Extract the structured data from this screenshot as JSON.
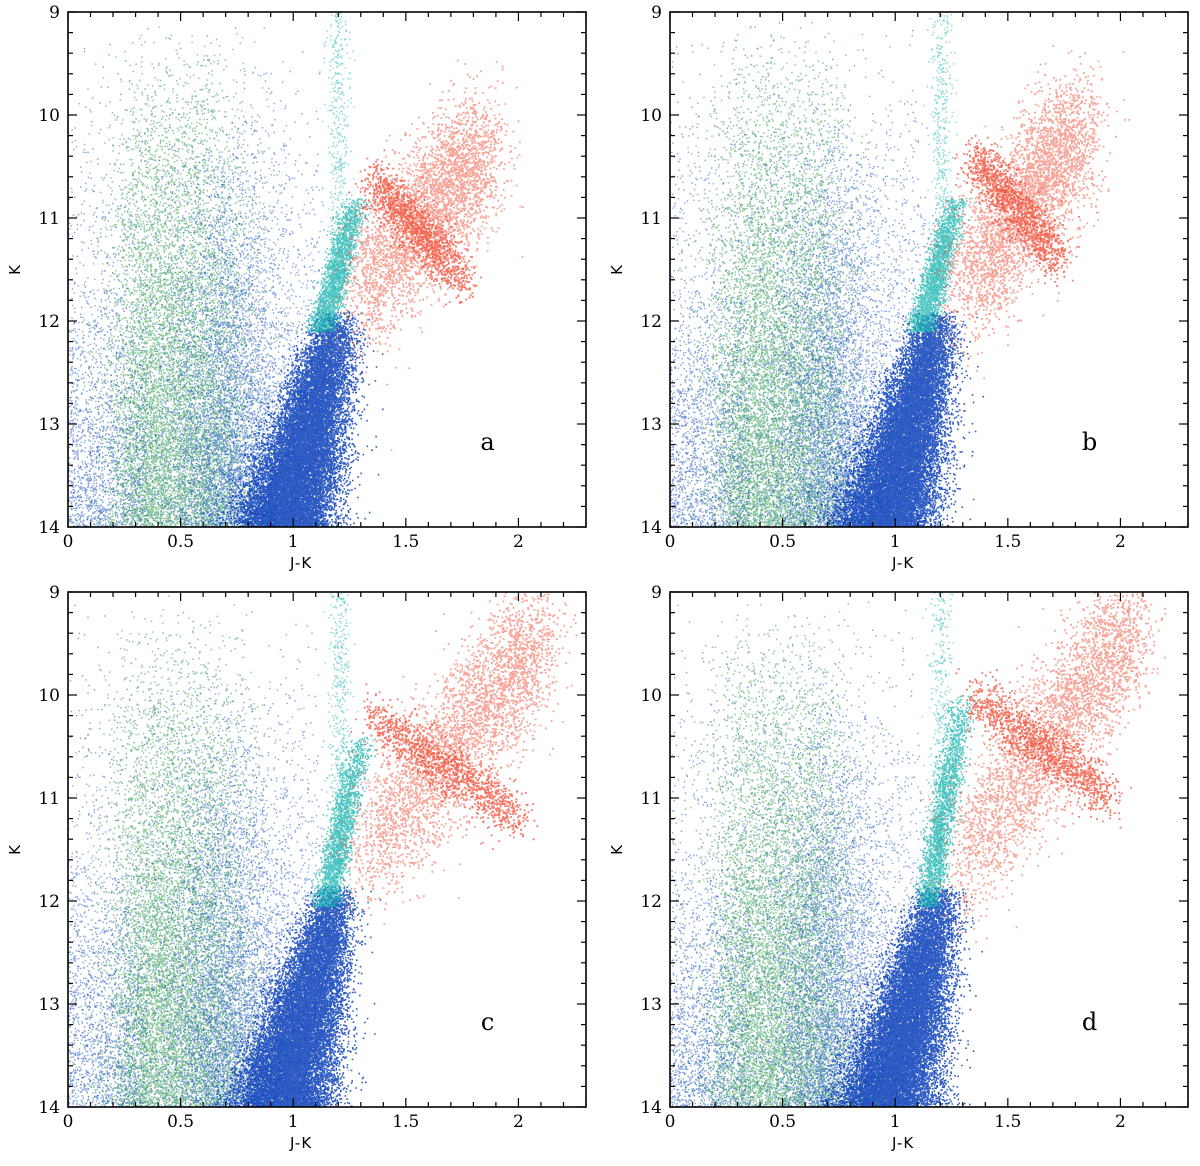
{
  "colors": {
    "field_blue": "#1e55c8",
    "disk_green": "#2a9a4a",
    "rgb_blue": "#0a3fb8",
    "agb_cyan": "#18b4b0",
    "tp_agb_red": "#f04a32",
    "background": "#ffffff",
    "axes": "#000000"
  },
  "chart_data": [
    {
      "type": "scatter",
      "panel_label": "a",
      "xlabel": "J-K",
      "ylabel": "K",
      "xlim": [
        0,
        2.3
      ],
      "ylim": [
        14,
        9
      ],
      "y_inverted": true,
      "xticks": [
        0,
        0.5,
        1,
        1.5,
        2
      ],
      "xtick_labels": [
        "0",
        "0.5",
        "1",
        "1.5",
        "2"
      ],
      "yticks": [
        9,
        10,
        11,
        12,
        13,
        14
      ],
      "ytick_labels": [
        "9",
        "10",
        "11",
        "12",
        "13",
        "14"
      ],
      "grid": false,
      "populations": {
        "rgb_tip_K": 11.9,
        "rgb_tip_JK": 1.25,
        "agb_top_K": 10.8,
        "agb_top_JK": 1.28,
        "red_end_K": 10.3,
        "red_end_JK": 1.85,
        "red_mid_K": 11.1
      }
    },
    {
      "type": "scatter",
      "panel_label": "b",
      "xlabel": "J-K",
      "ylabel": "K",
      "xlim": [
        0,
        2.3
      ],
      "ylim": [
        14,
        9
      ],
      "y_inverted": true,
      "xticks": [
        0,
        0.5,
        1,
        1.5,
        2
      ],
      "xtick_labels": [
        "0",
        "0.5",
        "1",
        "1.5",
        "2"
      ],
      "yticks": [
        9,
        10,
        11,
        12,
        13,
        14
      ],
      "ytick_labels": [
        "9",
        "10",
        "11",
        "12",
        "13",
        "14"
      ],
      "grid": false,
      "populations": {
        "rgb_tip_K": 11.9,
        "rgb_tip_JK": 1.24,
        "agb_top_K": 10.8,
        "agb_top_JK": 1.27,
        "red_end_K": 10.1,
        "red_end_JK": 1.82,
        "red_mid_K": 10.9
      }
    },
    {
      "type": "scatter",
      "panel_label": "c",
      "xlabel": "J-K",
      "ylabel": "K",
      "xlim": [
        0,
        2.3
      ],
      "ylim": [
        14,
        9
      ],
      "y_inverted": true,
      "xticks": [
        0,
        0.5,
        1,
        1.5,
        2
      ],
      "xtick_labels": [
        "0",
        "0.5",
        "1",
        "1.5",
        "2"
      ],
      "yticks": [
        9,
        10,
        11,
        12,
        13,
        14
      ],
      "ytick_labels": [
        "9",
        "10",
        "11",
        "12",
        "13",
        "14"
      ],
      "grid": false,
      "populations": {
        "rgb_tip_K": 11.85,
        "rgb_tip_JK": 1.24,
        "agb_top_K": 10.4,
        "agb_top_JK": 1.3,
        "red_end_K": 9.4,
        "red_end_JK": 2.1,
        "red_mid_K": 10.7
      }
    },
    {
      "type": "scatter",
      "panel_label": "d",
      "xlabel": "J-K",
      "ylabel": "K",
      "xlim": [
        0,
        2.3
      ],
      "ylim": [
        14,
        9
      ],
      "y_inverted": true,
      "xticks": [
        0,
        0.5,
        1,
        1.5,
        2
      ],
      "xtick_labels": [
        "0",
        "0.5",
        "1",
        "1.5",
        "2"
      ],
      "yticks": [
        9,
        10,
        11,
        12,
        13,
        14
      ],
      "ytick_labels": [
        "9",
        "10",
        "11",
        "12",
        "13",
        "14"
      ],
      "grid": false,
      "populations": {
        "rgb_tip_K": 11.85,
        "rgb_tip_JK": 1.25,
        "agb_top_K": 10.0,
        "agb_top_JK": 1.3,
        "red_end_K": 9.3,
        "red_end_JK": 2.05,
        "red_mid_K": 10.5
      }
    }
  ]
}
